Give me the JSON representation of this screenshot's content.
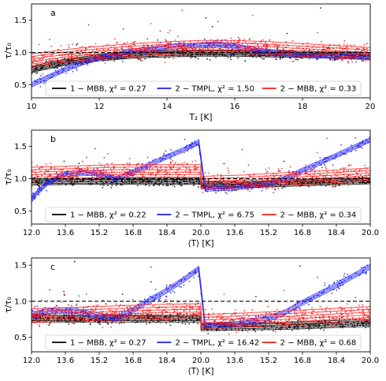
{
  "chart_data": [
    {
      "type": "scatter",
      "panel_label": "a",
      "xlabel": "T₂ [K]",
      "ylabel": "τ/τ₀",
      "xlim": [
        10,
        20
      ],
      "ylim": [
        0.3,
        1.75
      ],
      "xticks": [
        {
          "v": 10,
          "label": "10"
        },
        {
          "v": 12,
          "label": "12"
        },
        {
          "v": 14,
          "label": "14"
        },
        {
          "v": 16,
          "label": "16"
        },
        {
          "v": 18,
          "label": "18"
        },
        {
          "v": 20,
          "label": "20"
        }
      ],
      "yticks": [
        {
          "v": 0.5,
          "label": "0.5"
        },
        {
          "v": 1.0,
          "label": "1.0"
        },
        {
          "v": 1.5,
          "label": "1.5"
        }
      ],
      "reference_line": 1.0,
      "grid": false,
      "legend_placement": "bottom",
      "series": [
        {
          "name": "1 − MBB, χ² = 0.27",
          "color": "#000000",
          "x": [
            10,
            11,
            12,
            13,
            14,
            15,
            16,
            17,
            18,
            19,
            20
          ],
          "y": [
            0.74,
            0.85,
            0.92,
            0.96,
            0.98,
            0.99,
            0.99,
            0.98,
            0.97,
            0.96,
            0.95
          ]
        },
        {
          "name": "2 − TMPL, χ² = 1.50",
          "color": "#1a1aff",
          "x": [
            10,
            10.5,
            11,
            11.5,
            12,
            13,
            14,
            15,
            15.5,
            16,
            17,
            18,
            19,
            20
          ],
          "y": [
            0.5,
            0.62,
            0.74,
            0.84,
            0.92,
            1.02,
            1.08,
            1.12,
            1.13,
            1.1,
            1.0,
            0.96,
            0.94,
            0.93
          ]
        },
        {
          "name": "2 − MBB, χ² = 0.33",
          "color": "#ff1a1a",
          "x": [
            10,
            11,
            12,
            13,
            14,
            15,
            16,
            17,
            18,
            19,
            20
          ],
          "y": [
            0.88,
            0.95,
            1.0,
            1.04,
            1.07,
            1.09,
            1.09,
            1.07,
            1.04,
            1.01,
            0.98
          ]
        }
      ]
    },
    {
      "type": "scatter",
      "panel_label": "b",
      "xlabel": "⟨T⟩ [K]",
      "ylabel": "τ/τ₀",
      "xlim": [
        0,
        16
      ],
      "ylim": [
        0.3,
        1.75
      ],
      "xticks": [
        {
          "v": 0,
          "label": "12.0"
        },
        {
          "v": 1.6,
          "label": "13.6"
        },
        {
          "v": 3.2,
          "label": "15.2"
        },
        {
          "v": 4.8,
          "label": "16.8"
        },
        {
          "v": 6.4,
          "label": "18.4"
        },
        {
          "v": 8,
          "label": "20.0"
        },
        {
          "v": 9.6,
          "label": "13.6"
        },
        {
          "v": 11.2,
          "label": "15.2"
        },
        {
          "v": 12.8,
          "label": "16.8"
        },
        {
          "v": 14.4,
          "label": "18.4"
        },
        {
          "v": 16,
          "label": "20.0"
        }
      ],
      "yticks": [
        {
          "v": 0.5,
          "label": "0.5"
        },
        {
          "v": 1.0,
          "label": "1.0"
        },
        {
          "v": 1.5,
          "label": "1.5"
        }
      ],
      "reference_line": 1.0,
      "grid": false,
      "legend_placement": "bottom",
      "series": [
        {
          "name": "1 − MBB, χ² = 0.22",
          "color": "#000000",
          "x": [
            0,
            2,
            4,
            6,
            8,
            8.01,
            10,
            12,
            14,
            16
          ],
          "y": [
            0.95,
            0.96,
            0.96,
            0.96,
            0.96,
            0.9,
            0.91,
            0.93,
            0.95,
            0.97
          ]
        },
        {
          "name": "2 − TMPL, χ² = 6.75",
          "color": "#1a1aff",
          "x": [
            0,
            0.8,
            1.6,
            2.4,
            3.2,
            4.0,
            4.8,
            5.6,
            6.4,
            7.2,
            7.9,
            8.2,
            9.6,
            11.2,
            12.0,
            12.8,
            14.4,
            16
          ],
          "y": [
            0.7,
            0.95,
            1.07,
            1.1,
            1.08,
            1.0,
            1.1,
            1.22,
            1.34,
            1.45,
            1.56,
            0.84,
            0.86,
            0.92,
            1.0,
            1.13,
            1.36,
            1.6
          ]
        },
        {
          "name": "2 − MBB, χ² = 0.34",
          "color": "#ff1a1a",
          "x": [
            0,
            2,
            4,
            6,
            8,
            8.01,
            10,
            12,
            14,
            16
          ],
          "y": [
            1.08,
            1.1,
            1.12,
            1.12,
            1.12,
            0.94,
            0.96,
            1.0,
            1.03,
            1.07
          ]
        }
      ]
    },
    {
      "type": "scatter",
      "panel_label": "c",
      "xlabel": "⟨T⟩ [K]",
      "ylabel": "τ/τ₀",
      "xlim": [
        0,
        16
      ],
      "ylim": [
        0.3,
        1.6
      ],
      "xticks": [
        {
          "v": 0,
          "label": "12.0"
        },
        {
          "v": 1.6,
          "label": "13.6"
        },
        {
          "v": 3.2,
          "label": "15.2"
        },
        {
          "v": 4.8,
          "label": "16.8"
        },
        {
          "v": 6.4,
          "label": "18.4"
        },
        {
          "v": 8,
          "label": "20.0"
        },
        {
          "v": 9.6,
          "label": "13.6"
        },
        {
          "v": 11.2,
          "label": "15.2"
        },
        {
          "v": 12.8,
          "label": "16.8"
        },
        {
          "v": 14.4,
          "label": "18.4"
        },
        {
          "v": 16,
          "label": "20.0"
        }
      ],
      "yticks": [
        {
          "v": 0.5,
          "label": "0.5"
        },
        {
          "v": 1.0,
          "label": "1.0"
        },
        {
          "v": 1.5,
          "label": "1.5"
        }
      ],
      "reference_line": 1.0,
      "grid": false,
      "legend_placement": "bottom",
      "series": [
        {
          "name": "1 − MBB, χ² = 0.27",
          "color": "#000000",
          "x": [
            0,
            2,
            4,
            6,
            8,
            8.01,
            10,
            12,
            14,
            16
          ],
          "y": [
            0.76,
            0.76,
            0.76,
            0.76,
            0.76,
            0.64,
            0.65,
            0.66,
            0.68,
            0.7
          ]
        },
        {
          "name": "2 − TMPL, χ² = 16.42",
          "color": "#1a1aff",
          "x": [
            0,
            0.8,
            1.6,
            2.4,
            3.2,
            4.0,
            4.8,
            5.6,
            6.4,
            7.2,
            7.9,
            8.2,
            9.6,
            10.4,
            11.2,
            12.0,
            12.8,
            14.4,
            16
          ],
          "y": [
            0.82,
            0.86,
            0.88,
            0.85,
            0.8,
            0.76,
            0.88,
            1.02,
            1.15,
            1.3,
            1.45,
            0.66,
            0.68,
            0.72,
            0.76,
            0.85,
            0.98,
            1.22,
            1.48
          ]
        },
        {
          "name": "2 − MBB, χ² = 0.68",
          "color": "#ff1a1a",
          "x": [
            0,
            2,
            4,
            6,
            8,
            8.01,
            10,
            12,
            14,
            16
          ],
          "y": [
            0.8,
            0.82,
            0.84,
            0.86,
            0.87,
            0.72,
            0.74,
            0.77,
            0.8,
            0.83
          ]
        }
      ]
    }
  ]
}
